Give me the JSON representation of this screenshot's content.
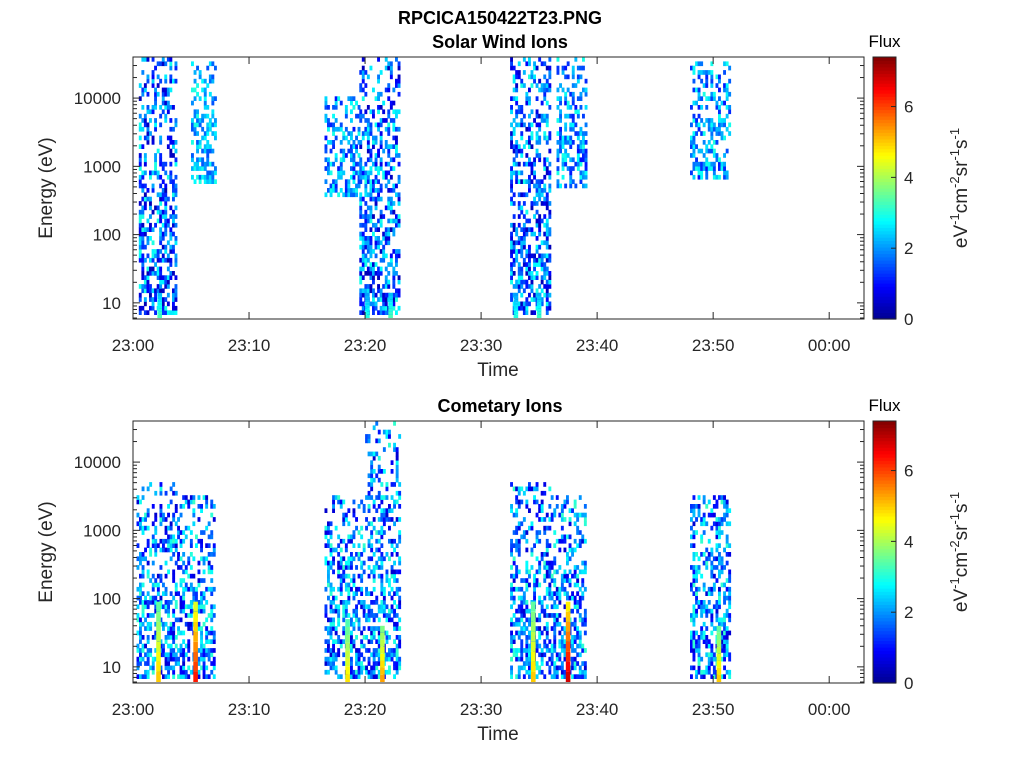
{
  "figure_title": "RPCICA150422T23.PNG",
  "colormap": [
    "#00008f",
    "#0000ff",
    "#0080ff",
    "#00ffff",
    "#80ff80",
    "#ffff00",
    "#ff8000",
    "#ff0000",
    "#800000"
  ],
  "chart_data": [
    {
      "type": "heatmap",
      "title": "Solar Wind Ions",
      "xlabel": "Time",
      "ylabel": "Energy (eV)",
      "x_ticks": [
        "23:00",
        "23:10",
        "23:20",
        "23:30",
        "23:40",
        "23:50",
        "00:00"
      ],
      "x_tick_minutes": [
        0,
        10,
        20,
        30,
        40,
        50,
        60
      ],
      "xlim_minutes": [
        0,
        63
      ],
      "y_scale": "log",
      "y_ticks": [
        "10",
        "100",
        "1000",
        "10000"
      ],
      "y_tick_values": [
        10,
        100,
        1000,
        10000
      ],
      "ylim": [
        5.8,
        40000
      ],
      "colorbar": {
        "title": "Flux",
        "label": "eV⁻¹cm⁻²sr⁻¹s⁻¹",
        "ticks": [
          "0",
          "2",
          "4",
          "6"
        ],
        "tick_values": [
          0,
          2,
          4,
          6
        ],
        "range": [
          0,
          7.4
        ]
      },
      "bursts": [
        {
          "start_min": 0.5,
          "end_min": 3.7,
          "emin": 6,
          "emax": 40000,
          "flux_min": 0.3,
          "flux_max": 3.0
        },
        {
          "start_min": 5.0,
          "end_min": 7.0,
          "emin": 500,
          "emax": 35000,
          "flux_min": 1.5,
          "flux_max": 3.0
        },
        {
          "start_min": 16.5,
          "end_min": 19.5,
          "emin": 350,
          "emax": 10000,
          "flux_min": 1.0,
          "flux_max": 3.0
        },
        {
          "start_min": 19.5,
          "end_min": 22.8,
          "emin": 6,
          "emax": 40000,
          "flux_min": 0.3,
          "flux_max": 3.0
        },
        {
          "start_min": 32.5,
          "end_min": 35.8,
          "emin": 6,
          "emax": 40000,
          "flux_min": 0.3,
          "flux_max": 3.0
        },
        {
          "start_min": 36.5,
          "end_min": 39.0,
          "emin": 450,
          "emax": 35000,
          "flux_min": 1.0,
          "flux_max": 3.0
        },
        {
          "start_min": 48.0,
          "end_min": 51.5,
          "emin": 600,
          "emax": 30000,
          "flux_min": 1.0,
          "flux_max": 3.0
        }
      ],
      "hot_spots": [
        {
          "time_min": 2.3,
          "emin": 6,
          "emax": 14,
          "flux": 3.3
        },
        {
          "time_min": 20.2,
          "emin": 6,
          "emax": 14,
          "flux": 3.0
        },
        {
          "time_min": 22.2,
          "emin": 6,
          "emax": 14,
          "flux": 3.3
        },
        {
          "time_min": 33.0,
          "emin": 6,
          "emax": 14,
          "flux": 3.0
        },
        {
          "time_min": 35.0,
          "emin": 6,
          "emax": 14,
          "flux": 3.2
        }
      ]
    },
    {
      "type": "heatmap",
      "title": "Cometary Ions",
      "xlabel": "Time",
      "ylabel": "Energy (eV)",
      "x_ticks": [
        "23:00",
        "23:10",
        "23:20",
        "23:30",
        "23:40",
        "23:50",
        "00:00"
      ],
      "x_tick_minutes": [
        0,
        10,
        20,
        30,
        40,
        50,
        60
      ],
      "xlim_minutes": [
        0,
        63
      ],
      "y_scale": "log",
      "y_ticks": [
        "10",
        "100",
        "1000",
        "10000"
      ],
      "y_tick_values": [
        10,
        100,
        1000,
        10000
      ],
      "ylim": [
        5.8,
        40000
      ],
      "colorbar": {
        "title": "Flux",
        "label": "eV⁻¹cm⁻²sr⁻¹s⁻¹",
        "ticks": [
          "0",
          "2",
          "4",
          "6"
        ],
        "tick_values": [
          0,
          2,
          4,
          6
        ],
        "range": [
          0,
          7.4
        ]
      },
      "bursts": [
        {
          "start_min": 0.3,
          "end_min": 3.8,
          "emin": 6,
          "emax": 5000,
          "flux_min": 0.5,
          "flux_max": 3.2
        },
        {
          "start_min": 3.8,
          "end_min": 7.0,
          "emin": 6,
          "emax": 3000,
          "flux_min": 0.5,
          "flux_max": 3.2
        },
        {
          "start_min": 16.5,
          "end_min": 20.0,
          "emin": 6,
          "emax": 3000,
          "flux_min": 0.5,
          "flux_max": 3.2
        },
        {
          "start_min": 20.0,
          "end_min": 23.0,
          "emin": 6,
          "emax": 35000,
          "flux_min": 0.5,
          "flux_max": 3.2
        },
        {
          "start_min": 32.5,
          "end_min": 36.0,
          "emin": 6,
          "emax": 5000,
          "flux_min": 0.5,
          "flux_max": 3.2
        },
        {
          "start_min": 36.0,
          "end_min": 39.0,
          "emin": 6,
          "emax": 3000,
          "flux_min": 0.5,
          "flux_max": 3.2
        },
        {
          "start_min": 48.0,
          "end_min": 51.5,
          "emin": 6,
          "emax": 3000,
          "flux_min": 0.5,
          "flux_max": 3.2
        }
      ],
      "hot_spots": [
        {
          "time_min": 2.2,
          "emin": 6,
          "emax": 90,
          "flux": 5.0
        },
        {
          "time_min": 5.4,
          "emin": 6,
          "emax": 90,
          "flux": 6.3
        },
        {
          "time_min": 18.5,
          "emin": 6,
          "emax": 50,
          "flux": 4.8
        },
        {
          "time_min": 21.5,
          "emin": 6,
          "emax": 40,
          "flux": 5.3
        },
        {
          "time_min": 34.5,
          "emin": 6,
          "emax": 90,
          "flux": 5.0
        },
        {
          "time_min": 37.5,
          "emin": 6,
          "emax": 90,
          "flux": 6.8
        },
        {
          "time_min": 50.5,
          "emin": 6,
          "emax": 40,
          "flux": 5.0
        }
      ]
    }
  ]
}
